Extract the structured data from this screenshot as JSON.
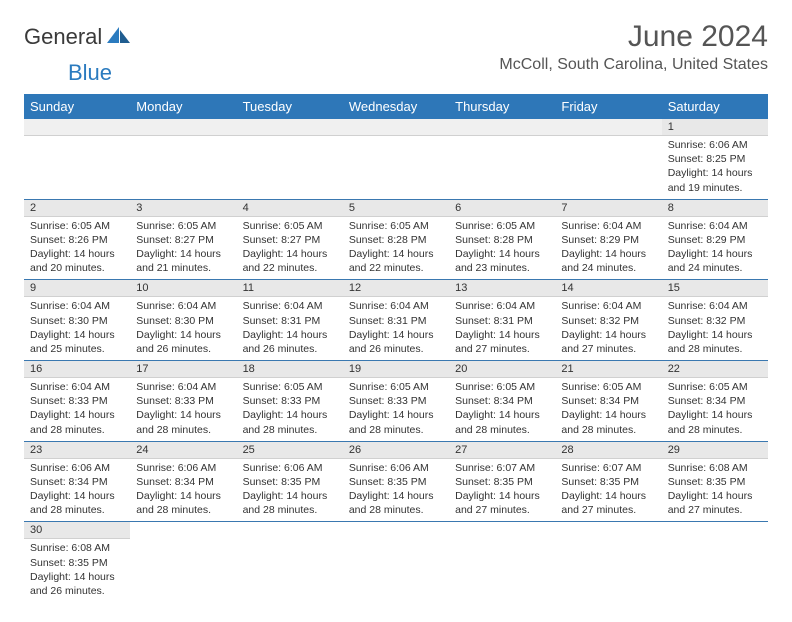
{
  "brand": {
    "part1": "General",
    "part2": "Blue"
  },
  "title": "June 2024",
  "location": "McColl, South Carolina, United States",
  "colors": {
    "header_bg": "#2e77b8",
    "header_text": "#ffffff",
    "cell_border": "#3a78b0",
    "daynum_bg": "#e8e8e8",
    "text": "#333333",
    "title_text": "#555555",
    "logo_blue": "#2b7bbf"
  },
  "dow": [
    "Sunday",
    "Monday",
    "Tuesday",
    "Wednesday",
    "Thursday",
    "Friday",
    "Saturday"
  ],
  "weeks": [
    [
      {
        "n": "",
        "lines": []
      },
      {
        "n": "",
        "lines": []
      },
      {
        "n": "",
        "lines": []
      },
      {
        "n": "",
        "lines": []
      },
      {
        "n": "",
        "lines": []
      },
      {
        "n": "",
        "lines": []
      },
      {
        "n": "1",
        "lines": [
          "Sunrise: 6:06 AM",
          "Sunset: 8:25 PM",
          "Daylight: 14 hours",
          "and 19 minutes."
        ]
      }
    ],
    [
      {
        "n": "2",
        "lines": [
          "Sunrise: 6:05 AM",
          "Sunset: 8:26 PM",
          "Daylight: 14 hours",
          "and 20 minutes."
        ]
      },
      {
        "n": "3",
        "lines": [
          "Sunrise: 6:05 AM",
          "Sunset: 8:27 PM",
          "Daylight: 14 hours",
          "and 21 minutes."
        ]
      },
      {
        "n": "4",
        "lines": [
          "Sunrise: 6:05 AM",
          "Sunset: 8:27 PM",
          "Daylight: 14 hours",
          "and 22 minutes."
        ]
      },
      {
        "n": "5",
        "lines": [
          "Sunrise: 6:05 AM",
          "Sunset: 8:28 PM",
          "Daylight: 14 hours",
          "and 22 minutes."
        ]
      },
      {
        "n": "6",
        "lines": [
          "Sunrise: 6:05 AM",
          "Sunset: 8:28 PM",
          "Daylight: 14 hours",
          "and 23 minutes."
        ]
      },
      {
        "n": "7",
        "lines": [
          "Sunrise: 6:04 AM",
          "Sunset: 8:29 PM",
          "Daylight: 14 hours",
          "and 24 minutes."
        ]
      },
      {
        "n": "8",
        "lines": [
          "Sunrise: 6:04 AM",
          "Sunset: 8:29 PM",
          "Daylight: 14 hours",
          "and 24 minutes."
        ]
      }
    ],
    [
      {
        "n": "9",
        "lines": [
          "Sunrise: 6:04 AM",
          "Sunset: 8:30 PM",
          "Daylight: 14 hours",
          "and 25 minutes."
        ]
      },
      {
        "n": "10",
        "lines": [
          "Sunrise: 6:04 AM",
          "Sunset: 8:30 PM",
          "Daylight: 14 hours",
          "and 26 minutes."
        ]
      },
      {
        "n": "11",
        "lines": [
          "Sunrise: 6:04 AM",
          "Sunset: 8:31 PM",
          "Daylight: 14 hours",
          "and 26 minutes."
        ]
      },
      {
        "n": "12",
        "lines": [
          "Sunrise: 6:04 AM",
          "Sunset: 8:31 PM",
          "Daylight: 14 hours",
          "and 26 minutes."
        ]
      },
      {
        "n": "13",
        "lines": [
          "Sunrise: 6:04 AM",
          "Sunset: 8:31 PM",
          "Daylight: 14 hours",
          "and 27 minutes."
        ]
      },
      {
        "n": "14",
        "lines": [
          "Sunrise: 6:04 AM",
          "Sunset: 8:32 PM",
          "Daylight: 14 hours",
          "and 27 minutes."
        ]
      },
      {
        "n": "15",
        "lines": [
          "Sunrise: 6:04 AM",
          "Sunset: 8:32 PM",
          "Daylight: 14 hours",
          "and 28 minutes."
        ]
      }
    ],
    [
      {
        "n": "16",
        "lines": [
          "Sunrise: 6:04 AM",
          "Sunset: 8:33 PM",
          "Daylight: 14 hours",
          "and 28 minutes."
        ]
      },
      {
        "n": "17",
        "lines": [
          "Sunrise: 6:04 AM",
          "Sunset: 8:33 PM",
          "Daylight: 14 hours",
          "and 28 minutes."
        ]
      },
      {
        "n": "18",
        "lines": [
          "Sunrise: 6:05 AM",
          "Sunset: 8:33 PM",
          "Daylight: 14 hours",
          "and 28 minutes."
        ]
      },
      {
        "n": "19",
        "lines": [
          "Sunrise: 6:05 AM",
          "Sunset: 8:33 PM",
          "Daylight: 14 hours",
          "and 28 minutes."
        ]
      },
      {
        "n": "20",
        "lines": [
          "Sunrise: 6:05 AM",
          "Sunset: 8:34 PM",
          "Daylight: 14 hours",
          "and 28 minutes."
        ]
      },
      {
        "n": "21",
        "lines": [
          "Sunrise: 6:05 AM",
          "Sunset: 8:34 PM",
          "Daylight: 14 hours",
          "and 28 minutes."
        ]
      },
      {
        "n": "22",
        "lines": [
          "Sunrise: 6:05 AM",
          "Sunset: 8:34 PM",
          "Daylight: 14 hours",
          "and 28 minutes."
        ]
      }
    ],
    [
      {
        "n": "23",
        "lines": [
          "Sunrise: 6:06 AM",
          "Sunset: 8:34 PM",
          "Daylight: 14 hours",
          "and 28 minutes."
        ]
      },
      {
        "n": "24",
        "lines": [
          "Sunrise: 6:06 AM",
          "Sunset: 8:34 PM",
          "Daylight: 14 hours",
          "and 28 minutes."
        ]
      },
      {
        "n": "25",
        "lines": [
          "Sunrise: 6:06 AM",
          "Sunset: 8:35 PM",
          "Daylight: 14 hours",
          "and 28 minutes."
        ]
      },
      {
        "n": "26",
        "lines": [
          "Sunrise: 6:06 AM",
          "Sunset: 8:35 PM",
          "Daylight: 14 hours",
          "and 28 minutes."
        ]
      },
      {
        "n": "27",
        "lines": [
          "Sunrise: 6:07 AM",
          "Sunset: 8:35 PM",
          "Daylight: 14 hours",
          "and 27 minutes."
        ]
      },
      {
        "n": "28",
        "lines": [
          "Sunrise: 6:07 AM",
          "Sunset: 8:35 PM",
          "Daylight: 14 hours",
          "and 27 minutes."
        ]
      },
      {
        "n": "29",
        "lines": [
          "Sunrise: 6:08 AM",
          "Sunset: 8:35 PM",
          "Daylight: 14 hours",
          "and 27 minutes."
        ]
      }
    ],
    [
      {
        "n": "30",
        "lines": [
          "Sunrise: 6:08 AM",
          "Sunset: 8:35 PM",
          "Daylight: 14 hours",
          "and 26 minutes."
        ]
      },
      {
        "n": "",
        "lines": []
      },
      {
        "n": "",
        "lines": []
      },
      {
        "n": "",
        "lines": []
      },
      {
        "n": "",
        "lines": []
      },
      {
        "n": "",
        "lines": []
      },
      {
        "n": "",
        "lines": []
      }
    ]
  ]
}
